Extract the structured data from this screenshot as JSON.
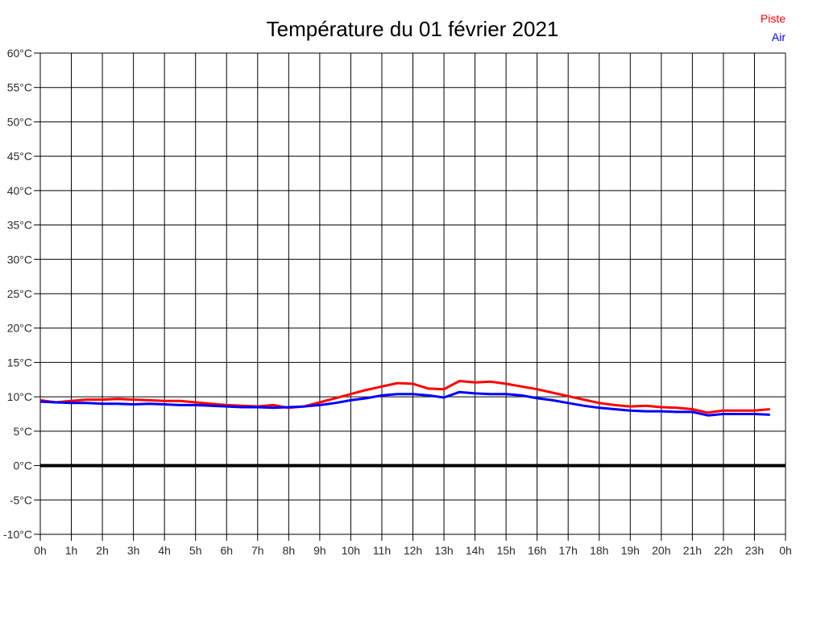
{
  "header": {
    "title": "Température du 01 février 2021"
  },
  "legend": {
    "items": [
      {
        "label": "Piste",
        "color": "#ff0000"
      },
      {
        "label": "Air",
        "color": "#0000ff"
      }
    ]
  },
  "chart_data": {
    "type": "line",
    "title": "Température du 01 février 2021",
    "xlabel": "",
    "ylabel": "",
    "x_unit": "hour of day",
    "y_unit": "°C",
    "xlim": [
      0,
      24
    ],
    "ylim": [
      -10,
      60
    ],
    "y_step": 5,
    "x_step": 1,
    "grid": true,
    "legend_position": "top-right",
    "zero_line": {
      "value": 0,
      "width": 4,
      "color": "#000000"
    },
    "x_tick_labels": [
      "0h",
      "1h",
      "2h",
      "3h",
      "4h",
      "5h",
      "6h",
      "7h",
      "8h",
      "9h",
      "10h",
      "11h",
      "12h",
      "13h",
      "14h",
      "15h",
      "16h",
      "17h",
      "18h",
      "19h",
      "20h",
      "21h",
      "22h",
      "23h",
      "0h"
    ],
    "y_tick_labels": [
      "60°C",
      "55°C",
      "50°C",
      "45°C",
      "40°C",
      "35°C",
      "30°C",
      "25°C",
      "20°C",
      "15°C",
      "10°C",
      "5°C",
      "0°C",
      "-5°C",
      "-10°C"
    ],
    "x": [
      0,
      0.5,
      1,
      1.5,
      2,
      2.5,
      3,
      3.5,
      4,
      4.5,
      5,
      5.5,
      6,
      6.5,
      7,
      7.5,
      8,
      8.5,
      9,
      9.5,
      10,
      10.5,
      11,
      11.5,
      12,
      12.5,
      13,
      13.5,
      14,
      14.5,
      15,
      15.5,
      16,
      16.5,
      17,
      17.5,
      18,
      18.5,
      19,
      19.5,
      20,
      20.5,
      21,
      21.5,
      22,
      22.5,
      23,
      23.5
    ],
    "series": [
      {
        "name": "Piste",
        "color": "#ff0000",
        "values": [
          9.5,
          9.2,
          9.4,
          9.6,
          9.6,
          9.7,
          9.6,
          9.5,
          9.4,
          9.4,
          9.2,
          9.0,
          8.8,
          8.7,
          8.6,
          8.8,
          8.4,
          8.6,
          9.2,
          9.8,
          10.4,
          11.0,
          11.5,
          12.0,
          11.9,
          11.2,
          11.1,
          12.3,
          12.1,
          12.2,
          11.9,
          11.5,
          11.1,
          10.6,
          10.1,
          9.6,
          9.1,
          8.8,
          8.6,
          8.7,
          8.5,
          8.4,
          8.2,
          7.7,
          8.0,
          8.0,
          8.0,
          8.2
        ]
      },
      {
        "name": "Air",
        "color": "#0000ff",
        "values": [
          9.3,
          9.2,
          9.1,
          9.1,
          9.0,
          9.0,
          8.9,
          9.0,
          8.9,
          8.8,
          8.8,
          8.7,
          8.6,
          8.5,
          8.5,
          8.4,
          8.5,
          8.6,
          8.8,
          9.1,
          9.5,
          9.8,
          10.2,
          10.4,
          10.4,
          10.2,
          9.9,
          10.7,
          10.5,
          10.4,
          10.4,
          10.2,
          9.8,
          9.5,
          9.1,
          8.7,
          8.4,
          8.2,
          8.0,
          7.9,
          7.9,
          7.8,
          7.8,
          7.3,
          7.5,
          7.5,
          7.5,
          7.4
        ]
      }
    ],
    "style": {
      "grid_color": "#000000",
      "tick_label_color": "#2b2b2b",
      "line_width": 3
    }
  }
}
